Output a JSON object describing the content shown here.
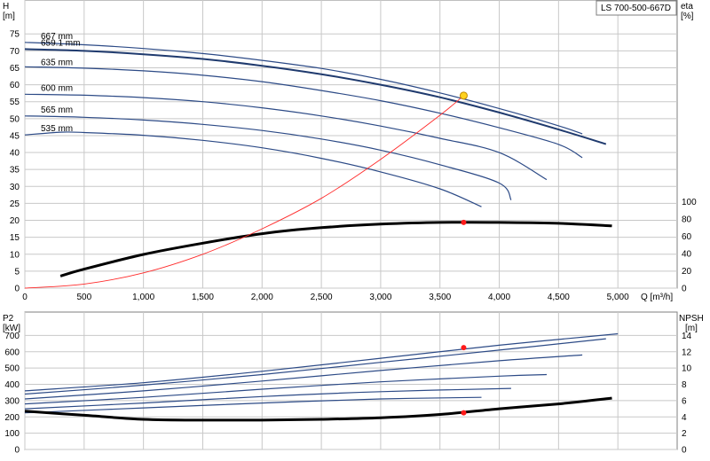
{
  "chart_data": [
    {
      "type": "line",
      "title": "LS 700-500-667D",
      "xlabel": "Q [m³/h]",
      "ylabel_left_name": "H",
      "ylabel_left_unit": "[m]",
      "ylabel_right_name": "eta",
      "ylabel_right_unit": "[%]",
      "xlim": [
        0,
        5500
      ],
      "ylim_left": [
        0,
        85
      ],
      "ylim_right": [
        0,
        100
      ],
      "x_ticks": [
        0,
        500,
        1000,
        1500,
        2000,
        2500,
        3000,
        3500,
        4000,
        4500,
        5000
      ],
      "x_tick_labels": [
        "0",
        "500",
        "1,000",
        "1,500",
        "2,000",
        "2,500",
        "3,000",
        "3,500",
        "4,000",
        "4,500",
        "5,000"
      ],
      "y_left_ticks": [
        "0",
        "5",
        "10",
        "15",
        "20",
        "25",
        "30",
        "35",
        "40",
        "45",
        "50",
        "55",
        "60",
        "65",
        "70",
        "75"
      ],
      "y_right_ticks": [
        "0",
        "20",
        "40",
        "60",
        "80",
        "100"
      ],
      "grid": true,
      "head_curves": [
        {
          "name": "667 mm",
          "x": [
            0,
            500,
            1000,
            1500,
            2000,
            2500,
            3000,
            3500,
            4000,
            4500,
            4700
          ],
          "y": [
            72.5,
            71.8,
            70.7,
            69.2,
            67.2,
            64.8,
            61.6,
            57.6,
            53.0,
            47.9,
            45.5
          ]
        },
        {
          "name": "659.1 mm",
          "x": [
            0,
            500,
            1000,
            1500,
            2000,
            2500,
            3000,
            3500,
            4000,
            4500,
            4900
          ],
          "y": [
            70.5,
            70.0,
            69.0,
            67.6,
            65.6,
            63.1,
            60.0,
            56.3,
            51.8,
            46.8,
            42.5
          ]
        },
        {
          "name": "635 mm",
          "x": [
            0,
            500,
            1000,
            1500,
            2000,
            2500,
            3000,
            3500,
            4000,
            4500,
            4700
          ],
          "y": [
            65.3,
            64.9,
            64.1,
            62.8,
            60.9,
            58.3,
            55.3,
            51.6,
            47.3,
            42.4,
            38.5
          ]
        },
        {
          "name": "600 mm",
          "x": [
            0,
            500,
            1000,
            1500,
            2000,
            2500,
            3000,
            3500,
            4000,
            4400
          ],
          "y": [
            57.2,
            56.9,
            56.2,
            55.0,
            53.2,
            50.8,
            47.8,
            44.2,
            40.0,
            32.0
          ]
        },
        {
          "name": "565 mm",
          "x": [
            0,
            500,
            1000,
            1500,
            2000,
            2500,
            3000,
            3500,
            4000,
            4100
          ],
          "y": [
            50.8,
            50.4,
            49.6,
            48.3,
            46.5,
            44.0,
            40.7,
            36.4,
            31.0,
            26.0
          ]
        },
        {
          "name": "535 mm",
          "x": [
            0,
            300,
            500,
            1000,
            1500,
            2000,
            2500,
            3000,
            3500,
            3850
          ],
          "y": [
            45.2,
            46.0,
            45.9,
            45.1,
            43.6,
            41.4,
            38.3,
            34.3,
            29.3,
            24.0
          ]
        }
      ],
      "efficiency_curve": {
        "x": [
          300,
          500,
          1000,
          1500,
          2000,
          2500,
          3000,
          3500,
          4000,
          4500,
          4950
        ],
        "y": [
          14,
          22,
          39,
          52,
          63,
          70,
          74,
          76,
          76,
          75,
          72
        ]
      },
      "system_curve": {
        "x": [
          0,
          500,
          1000,
          1500,
          2000,
          2500,
          3000,
          3500,
          3700
        ],
        "y": [
          0,
          1.2,
          4.5,
          10.0,
          17.5,
          26.5,
          38.0,
          51.0,
          56.8
        ]
      },
      "duty_point": {
        "q": 3700,
        "h": 56.8,
        "eta": 76
      }
    },
    {
      "type": "line",
      "ylabel_left_name": "P2",
      "ylabel_left_unit": "[kW]",
      "ylabel_right_name": "NPSH",
      "ylabel_right_unit": "[m]",
      "xlim": [
        0,
        5500
      ],
      "ylim_left": [
        0,
        800
      ],
      "ylim_right": [
        0,
        16
      ],
      "y_left_ticks": [
        "0",
        "100",
        "200",
        "300",
        "400",
        "500",
        "600",
        "700"
      ],
      "y_right_ticks": [
        "0",
        "2",
        "4",
        "6",
        "8",
        "10",
        "12",
        "14"
      ],
      "grid": true,
      "power_curves": [
        {
          "x": [
            0,
            1000,
            2000,
            3000,
            4000,
            5000
          ],
          "y": [
            360,
            410,
            480,
            560,
            640,
            710
          ]
        },
        {
          "x": [
            0,
            1000,
            2000,
            3000,
            4000,
            4900
          ],
          "y": [
            340,
            395,
            460,
            535,
            610,
            680
          ]
        },
        {
          "x": [
            0,
            1000,
            2000,
            3000,
            4000,
            4700
          ],
          "y": [
            310,
            360,
            420,
            485,
            545,
            580
          ]
        },
        {
          "x": [
            0,
            1000,
            2000,
            3000,
            4000,
            4400
          ],
          "y": [
            280,
            320,
            370,
            415,
            450,
            460
          ]
        },
        {
          "x": [
            0,
            1000,
            2000,
            3000,
            4100
          ],
          "y": [
            250,
            285,
            325,
            355,
            375
          ]
        },
        {
          "x": [
            0,
            1000,
            2000,
            3000,
            3850
          ],
          "y": [
            225,
            255,
            285,
            310,
            320
          ]
        }
      ],
      "npsh_curve": {
        "x": [
          0,
          500,
          1000,
          1500,
          2000,
          2500,
          3000,
          3500,
          4000,
          4500,
          4950
        ],
        "y": [
          4.7,
          4.2,
          3.7,
          3.6,
          3.6,
          3.7,
          3.9,
          4.3,
          5.0,
          5.6,
          6.3
        ]
      },
      "duty_point": {
        "q": 3700,
        "p2": 625,
        "npsh": 4.5
      }
    }
  ]
}
